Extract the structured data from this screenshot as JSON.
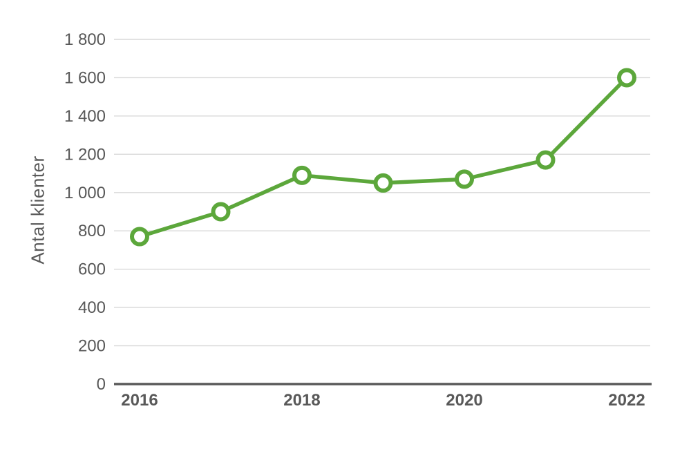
{
  "chart_data": {
    "type": "line",
    "x": [
      2016,
      2017,
      2018,
      2019,
      2020,
      2021,
      2022
    ],
    "values": [
      770,
      900,
      1090,
      1050,
      1070,
      1170,
      1600
    ],
    "title": "",
    "xlabel": "",
    "ylabel": "Antal klienter",
    "ylim": [
      0,
      1800
    ],
    "ytick_step": 200,
    "y_ticks": [
      {
        "value": 0,
        "label": "0"
      },
      {
        "value": 200,
        "label": "200"
      },
      {
        "value": 400,
        "label": "400"
      },
      {
        "value": 600,
        "label": "600"
      },
      {
        "value": 800,
        "label": "800"
      },
      {
        "value": 1000,
        "label": "1 000"
      },
      {
        "value": 1200,
        "label": "1 200"
      },
      {
        "value": 1400,
        "label": "1 400"
      },
      {
        "value": 1600,
        "label": "1 600"
      },
      {
        "value": 1800,
        "label": "1 800"
      }
    ],
    "x_ticks": [
      {
        "value": 2016,
        "label": "2016"
      },
      {
        "value": 2018,
        "label": "2018"
      },
      {
        "value": 2020,
        "label": "2020"
      },
      {
        "value": 2022,
        "label": "2022"
      }
    ],
    "grid": "horizontal",
    "legend": "none",
    "marker_style": "open-circle",
    "colors": {
      "line": "#5ca73b",
      "marker_fill": "#ffffff",
      "grid": "#d9d9d9",
      "axis": "#595959",
      "text": "#595959"
    }
  }
}
